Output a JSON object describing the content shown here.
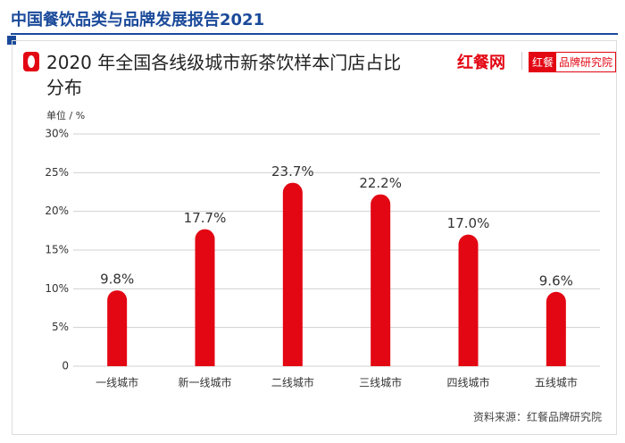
{
  "header": {
    "title": "中国餐饮品类与品牌发展报告2021"
  },
  "logos": {
    "brand": "红餐网",
    "badge_a": "红餐",
    "badge_b": "品牌研究院"
  },
  "chart_data": {
    "type": "bar",
    "title": "2020 年全国各线级城市新茶饮样本门店占比分布",
    "y_label": "单位 / %",
    "categories": [
      "一线城市",
      "新一线城市",
      "二线城市",
      "三线城市",
      "四线城市",
      "五线城市"
    ],
    "values": [
      9.8,
      17.7,
      23.7,
      22.2,
      17.0,
      9.6
    ],
    "value_labels": [
      "9.8%",
      "17.7%",
      "23.7%",
      "22.2%",
      "17.0%",
      "9.6%"
    ],
    "color": "#e30613",
    "ylim": [
      0,
      30
    ],
    "yticks": [
      0,
      {
        "value": 5,
        "label": "5%"
      },
      {
        "value": 10,
        "label": "10%"
      },
      {
        "value": 15,
        "label": "15%"
      },
      {
        "value": 20,
        "label": "20%"
      },
      {
        "value": 25,
        "label": "25%"
      },
      {
        "value": 30,
        "label": "30%"
      }
    ],
    "grid": true,
    "source": "资料来源：红餐品牌研究院"
  }
}
